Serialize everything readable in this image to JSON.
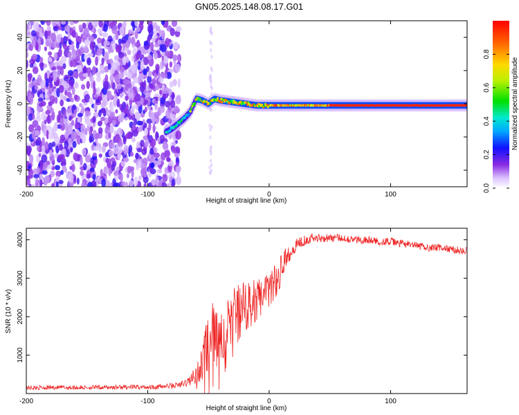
{
  "title": "GN05.2025.148.08.17.G01",
  "chart_data": [
    {
      "type": "heatmap",
      "name": "spectrogram",
      "xlabel": "Height of straight line (km)",
      "ylabel": "Frequency (Hz)",
      "xlim": [
        -200,
        163
      ],
      "ylim": [
        -50,
        50
      ],
      "xticks": [
        -200,
        -100,
        0,
        100
      ],
      "xtick_labels": [
        "-200",
        "-100",
        "0",
        "100"
      ],
      "yticks": [
        40,
        20,
        0,
        -20,
        -40
      ],
      "ytick_labels": [
        "40",
        "20",
        "0",
        "-20",
        "-40"
      ],
      "colorbar": {
        "label": "Normalized spectral amplitude",
        "range": [
          0,
          1
        ],
        "ticks": [
          0.0,
          0.2,
          0.4,
          0.6,
          0.8
        ],
        "tick_labels": [
          "0.0",
          "0.2",
          "0.4",
          "0.6",
          "0.8"
        ]
      },
      "signal_trace": {
        "x": [
          -85,
          -80,
          -75,
          -70,
          -65,
          -60,
          -55,
          -50,
          -45,
          -40,
          -30,
          -20,
          -10,
          0,
          20,
          40,
          60,
          80,
          100,
          120,
          140,
          163
        ],
        "freq": [
          -17,
          -15,
          -12,
          -9,
          -5,
          3,
          2,
          0,
          3,
          2,
          1,
          0,
          -1,
          -1,
          -1,
          -1,
          -1,
          -1,
          -1,
          -1,
          -1,
          -1
        ]
      },
      "noise_region_x": [
        -200,
        -80
      ],
      "grid": false
    },
    {
      "type": "line",
      "name": "snr",
      "xlabel": "Height of straight line (km)",
      "ylabel": "SNR (10 * v/v)",
      "xlim": [
        -200,
        163
      ],
      "ylim": [
        0,
        4300
      ],
      "xticks": [
        -200,
        -100,
        0,
        100
      ],
      "xtick_labels": [
        "-200",
        "-100",
        "0",
        "100"
      ],
      "yticks": [
        1000,
        2000,
        3000,
        4000
      ],
      "ytick_labels": [
        "1000",
        "2000",
        "3000",
        "4000"
      ],
      "color": "#ee2222",
      "series": [
        {
          "x": [
            -200,
            -180,
            -160,
            -140,
            -120,
            -100,
            -90,
            -80,
            -70,
            -65,
            -60,
            -55,
            -50,
            -45,
            -40,
            -35,
            -30,
            -25,
            -20,
            -15,
            -10,
            -5,
            0,
            5,
            10,
            15,
            20,
            25,
            30,
            35,
            40,
            50,
            60,
            70,
            80,
            90,
            100,
            110,
            120,
            130,
            140,
            150,
            163
          ],
          "values": [
            150,
            160,
            155,
            160,
            165,
            170,
            180,
            200,
            250,
            350,
            500,
            800,
            1300,
            1600,
            1400,
            1800,
            2000,
            2300,
            2400,
            2500,
            2600,
            2700,
            2800,
            3000,
            3300,
            3600,
            3800,
            3950,
            4000,
            4050,
            4050,
            4050,
            4050,
            4000,
            4000,
            3950,
            3950,
            3900,
            3850,
            3800,
            3800,
            3750,
            3700
          ],
          "noise": [
            60,
            60,
            60,
            60,
            60,
            60,
            70,
            80,
            100,
            150,
            250,
            500,
            900,
            900,
            900,
            700,
            700,
            600,
            500,
            500,
            450,
            400,
            350,
            350,
            300,
            250,
            200,
            150,
            150,
            120,
            120,
            100,
            100,
            100,
            100,
            100,
            100,
            100,
            100,
            100,
            100,
            100,
            100
          ]
        }
      ],
      "grid": false
    }
  ]
}
